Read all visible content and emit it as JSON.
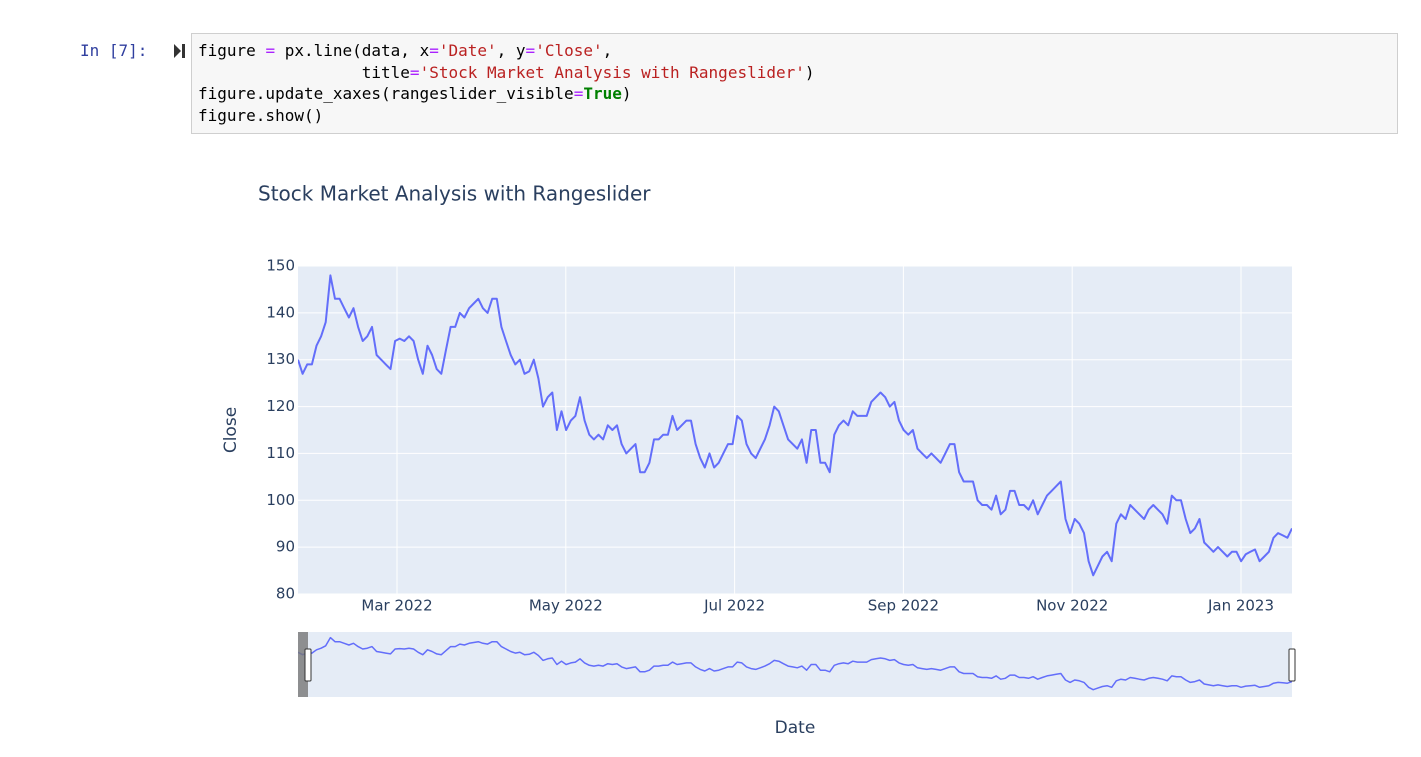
{
  "cell": {
    "prompt": "In [7]:",
    "code": [
      "figure = px.line(data, x='Date', y='Close',",
      "                 title='Stock Market Analysis with Rangeslider')",
      "figure.update_xaxes(rangeslider_visible=True)",
      "figure.show()"
    ]
  },
  "chart_data": {
    "type": "line",
    "title": "Stock Market Analysis with Rangeslider",
    "x_label": "Date",
    "y_label": "Close",
    "xlim": [
      "2022-02",
      "2023-01"
    ],
    "xticks": [
      {
        "value": "2022-03",
        "label": "Mar 2022"
      },
      {
        "value": "2022-05",
        "label": "May 2022"
      },
      {
        "value": "2022-07",
        "label": "Jul 2022"
      },
      {
        "value": "2022-09",
        "label": "Sep 2022"
      },
      {
        "value": "2022-11",
        "label": "Nov 2022"
      },
      {
        "value": "2023-01",
        "label": "Jan 2023"
      }
    ],
    "ylim": [
      80,
      150
    ],
    "yticks": [
      80,
      90,
      100,
      110,
      120,
      130,
      140,
      150
    ],
    "grid": true,
    "rangeslider": true,
    "series": [
      {
        "name": "Close",
        "color": "#636efa",
        "values": [
          130,
          127,
          129,
          129,
          133,
          135,
          138,
          148,
          143,
          143,
          141,
          139,
          141,
          137,
          134,
          135,
          137,
          131,
          130,
          129,
          128,
          134,
          134.5,
          134,
          135,
          134,
          130,
          127,
          133,
          131,
          128,
          127,
          132,
          137,
          137,
          140,
          139,
          141,
          142,
          143,
          141,
          140,
          143,
          143,
          137,
          134,
          131,
          129,
          130,
          127,
          127.5,
          130,
          126,
          120,
          122,
          123,
          115,
          119,
          115,
          117,
          118,
          122,
          117,
          114,
          113,
          114,
          113,
          116,
          115,
          116,
          112,
          110,
          111,
          112,
          106,
          106,
          108,
          113,
          113,
          114,
          114,
          118,
          115,
          116,
          117,
          117,
          112,
          109,
          107,
          110,
          107,
          108,
          110,
          112,
          112,
          118,
          117,
          112,
          110,
          109,
          111,
          113,
          116,
          120,
          119,
          116,
          113,
          112,
          111,
          113,
          108,
          115,
          115,
          108,
          108,
          106,
          114,
          116,
          117,
          116,
          119,
          118,
          118,
          118,
          121,
          122,
          123,
          122,
          120,
          121,
          117,
          115,
          114,
          115,
          111,
          110,
          109,
          110,
          109,
          108,
          110,
          112,
          112,
          106,
          104,
          104,
          104,
          100,
          99,
          99,
          98,
          101,
          97,
          98,
          102,
          102,
          99,
          99,
          98,
          100,
          97,
          99,
          101,
          102,
          103,
          104,
          96,
          93,
          96,
          95,
          93,
          87,
          84,
          86,
          88,
          89,
          87,
          95,
          97,
          96,
          99,
          98,
          97,
          96,
          98,
          99,
          98,
          97,
          95,
          101,
          100,
          100,
          96,
          93,
          94,
          96,
          91,
          90,
          89,
          90,
          89,
          88,
          89,
          89,
          87,
          88.5,
          89,
          89.5,
          87,
          88,
          89,
          92,
          93,
          92.5,
          92,
          94
        ]
      }
    ]
  }
}
